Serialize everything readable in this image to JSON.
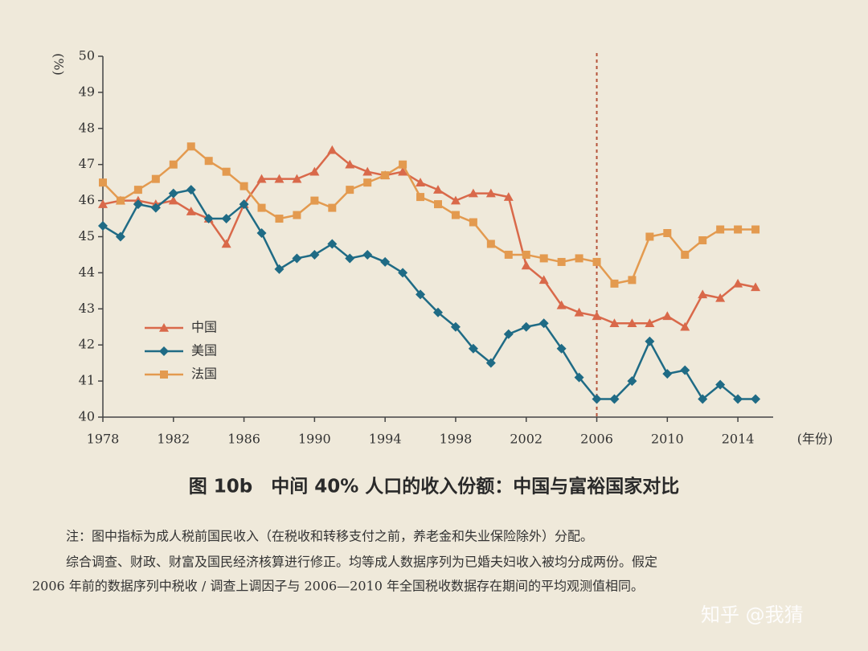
{
  "chart_data": {
    "type": "line",
    "title": "图 10b　中间 40% 人口的收入份额：中国与富裕国家对比",
    "y_label": "(%)",
    "x_label": "(年份)",
    "x": [
      1978,
      1979,
      1980,
      1981,
      1982,
      1983,
      1984,
      1985,
      1986,
      1987,
      1988,
      1989,
      1990,
      1991,
      1992,
      1993,
      1994,
      1995,
      1996,
      1997,
      1998,
      1999,
      2000,
      2001,
      2002,
      2003,
      2004,
      2005,
      2006,
      2007,
      2008,
      2009,
      2010,
      2011,
      2012,
      2013,
      2014,
      2015
    ],
    "series": [
      {
        "name": "中国",
        "color": "#d9694a",
        "marker": "triangle",
        "values": [
          45.9,
          46.0,
          46.0,
          45.9,
          46.0,
          45.7,
          45.5,
          44.8,
          45.9,
          46.6,
          46.6,
          46.6,
          46.8,
          47.4,
          47.0,
          46.8,
          46.7,
          46.8,
          46.5,
          46.3,
          46.0,
          46.2,
          46.2,
          46.1,
          44.2,
          43.8,
          43.1,
          42.9,
          42.8,
          42.6,
          42.6,
          42.6,
          42.8,
          42.5,
          43.4,
          43.3,
          43.7,
          43.6
        ]
      },
      {
        "name": "美国",
        "color": "#1f6b85",
        "marker": "diamond",
        "values": [
          45.3,
          45.0,
          45.9,
          45.8,
          46.2,
          46.3,
          45.5,
          45.5,
          45.9,
          45.1,
          44.1,
          44.4,
          44.5,
          44.8,
          44.4,
          44.5,
          44.3,
          44.0,
          43.4,
          42.9,
          42.5,
          41.9,
          41.5,
          42.3,
          42.5,
          42.6,
          41.9,
          41.1,
          40.5,
          40.5,
          41.0,
          42.1,
          41.2,
          41.3,
          40.5,
          40.9,
          40.5,
          40.5
        ]
      },
      {
        "name": "法国",
        "color": "#e39a4f",
        "marker": "square",
        "values": [
          46.5,
          46.0,
          46.3,
          46.6,
          47.0,
          47.5,
          47.1,
          46.8,
          46.4,
          45.8,
          45.5,
          45.6,
          46.0,
          45.8,
          46.3,
          46.5,
          46.7,
          47.0,
          46.1,
          45.9,
          45.6,
          45.4,
          44.8,
          44.5,
          44.5,
          44.4,
          44.3,
          44.4,
          44.3,
          43.7,
          43.8,
          45.0,
          45.1,
          44.5,
          44.9,
          45.2,
          45.2,
          45.2
        ]
      }
    ],
    "xlim": [
      1978,
      2016
    ],
    "ylim": [
      40,
      50
    ],
    "xticks": [
      1978,
      1982,
      1986,
      1990,
      1994,
      1998,
      2002,
      2006,
      2010,
      2014
    ],
    "yticks": [
      40,
      41,
      42,
      43,
      44,
      45,
      46,
      47,
      48,
      49,
      50
    ],
    "vline": 2006,
    "vline_color": "#b5543a",
    "legend": "lower-left"
  },
  "notes": [
    "注：图中指标为成人税前国民收入（在税收和转移支付之前，养老金和失业保险除外）分配。",
    "综合调查、财政、财富及国民经济核算进行修正。均等成人数据序列为已婚夫妇收入被均分成两份。假定",
    "2006 年前的数据序列中税收 / 调查上调因子与 2006—2010 年全国税收数据存在期间的平均观测值相同。"
  ],
  "watermark": "知乎 @我猜"
}
